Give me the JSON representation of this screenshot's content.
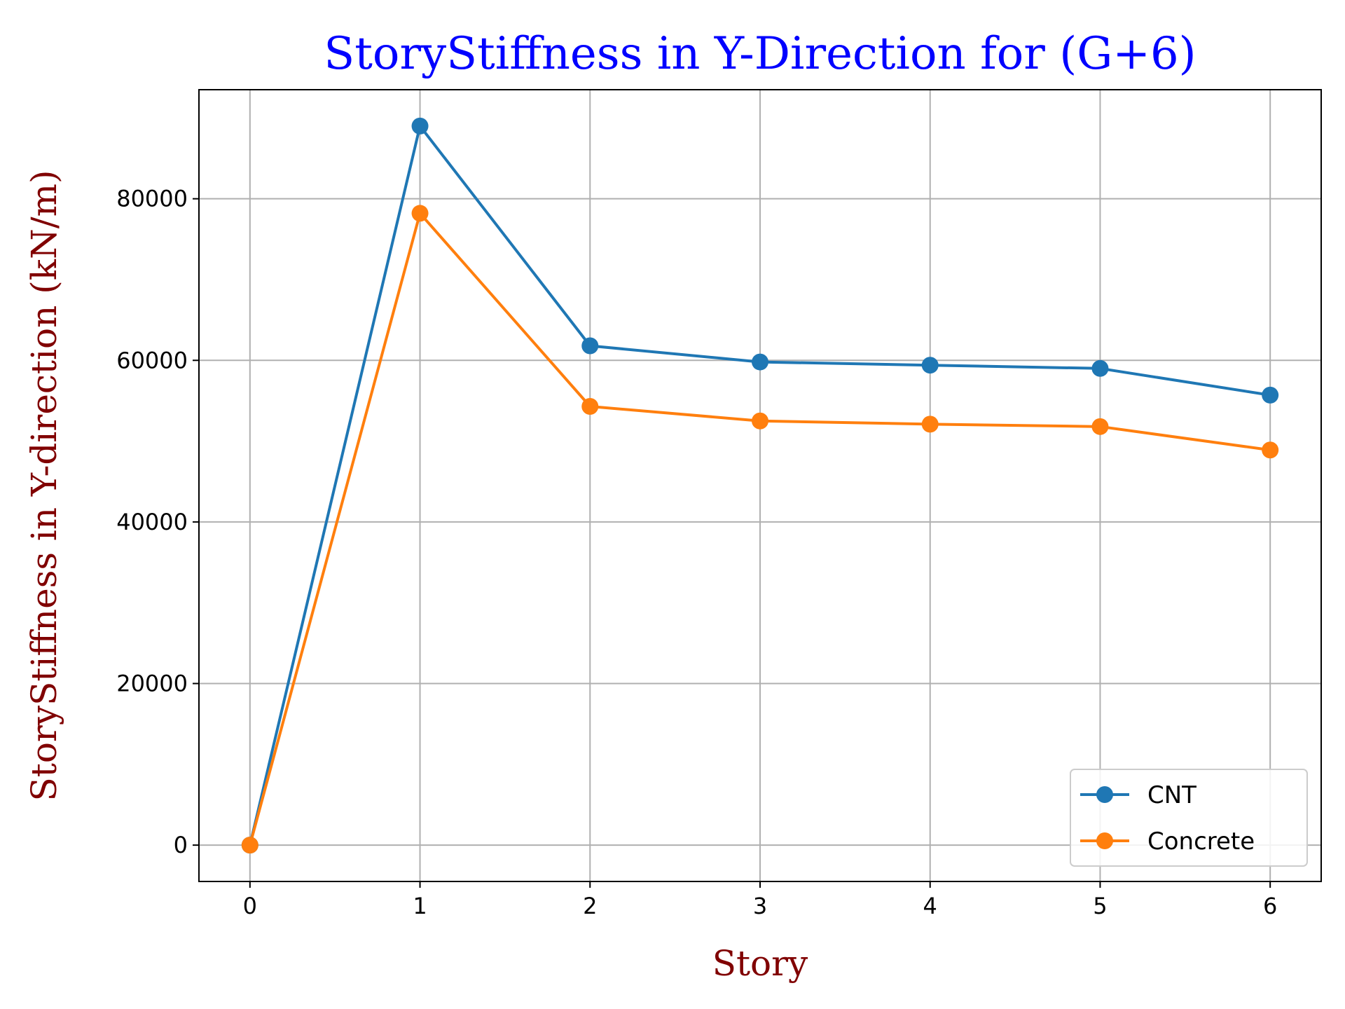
{
  "chart_data": {
    "type": "line",
    "title": "StoryStiffness in Y-Direction for (G+6)",
    "xlabel": "Story",
    "ylabel": "StoryStiffness in Y-direction (kN/m)",
    "x": [
      0,
      1,
      2,
      3,
      4,
      5,
      6
    ],
    "xlim": [
      -0.3,
      6.3
    ],
    "ylim": [
      -4500,
      93500
    ],
    "xticks": [
      "0",
      "1",
      "2",
      "3",
      "4",
      "5",
      "6"
    ],
    "yticks": [
      0,
      20000,
      40000,
      60000,
      80000
    ],
    "ytick_labels": [
      "0",
      "20000",
      "40000",
      "60000",
      "80000"
    ],
    "grid": true,
    "legend_position": "lower-right",
    "series": [
      {
        "name": "CNT",
        "color": "#1f77b4",
        "marker": "circle",
        "values": [
          0,
          89000,
          61800,
          59800,
          59400,
          59000,
          55700
        ]
      },
      {
        "name": "Concrete",
        "color": "#ff7f0e",
        "marker": "circle",
        "values": [
          0,
          78200,
          54300,
          52500,
          52100,
          51800,
          48900
        ]
      }
    ],
    "title_color": "#0000ff",
    "axis_label_color": "#800000"
  }
}
